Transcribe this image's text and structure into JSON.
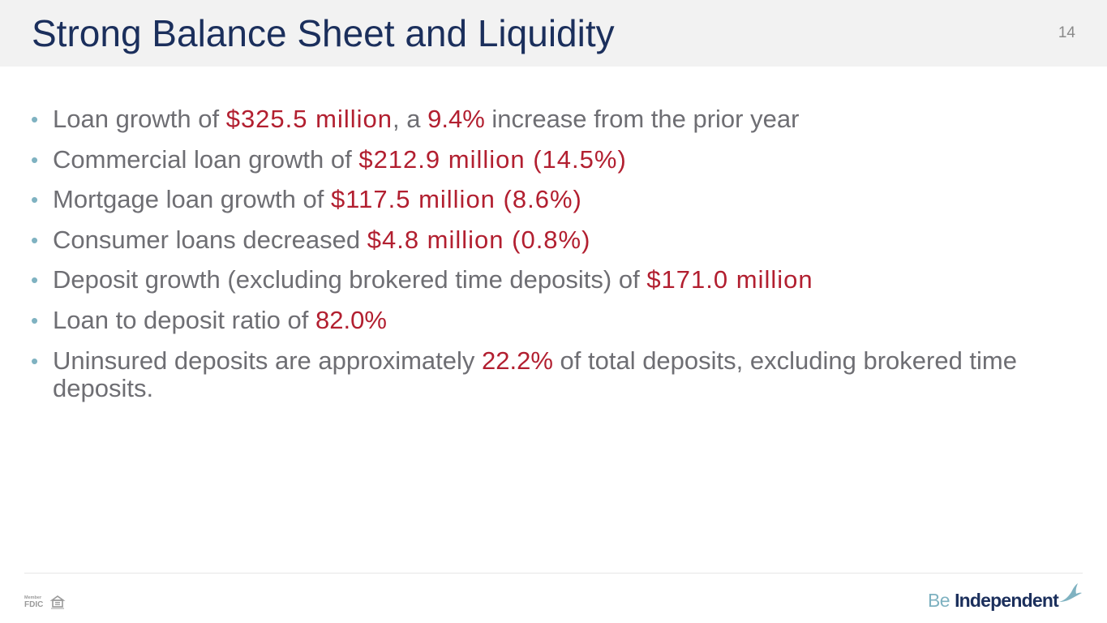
{
  "header": {
    "title": "Strong Balance Sheet and Liquidity",
    "page_number": "14"
  },
  "bullets": [
    {
      "pre": "Loan growth of ",
      "hl1": "$325.5 million",
      "mid": ", a ",
      "hl2": "9.4%",
      "post": " increase from the prior year"
    },
    {
      "pre": "Commercial loan growth of ",
      "hl1": "$212.9 million (14.5%)"
    },
    {
      "pre": "Mortgage loan growth of ",
      "hl1": "$117.5 million (8.6%)"
    },
    {
      "pre": "Consumer loans decreased ",
      "hl1": "$4.8 million (0.8%)"
    },
    {
      "pre": "Deposit growth (excluding brokered time deposits) of ",
      "hl1": "$171.0 million"
    },
    {
      "pre": "Loan to deposit ratio of ",
      "hl1": "82.0%"
    },
    {
      "pre": "Uninsured deposits are approximately ",
      "hl1": "22.2%",
      "post": " of total deposits, excluding brokered time deposits."
    }
  ],
  "footer": {
    "fdic_member": "Member",
    "fdic_text": "FDIC",
    "brand_be": "Be",
    "brand_independent": "Independent"
  },
  "colors": {
    "title": "#1b2f5c",
    "body_text": "#6e6e73",
    "highlight": "#b21f30",
    "bullet": "#7fb2c1",
    "header_bg": "#f2f2f2"
  },
  "icons": [
    "bullet-dot-icon",
    "fdic-logo-icon",
    "equal-housing-lender-icon",
    "bird-icon"
  ]
}
